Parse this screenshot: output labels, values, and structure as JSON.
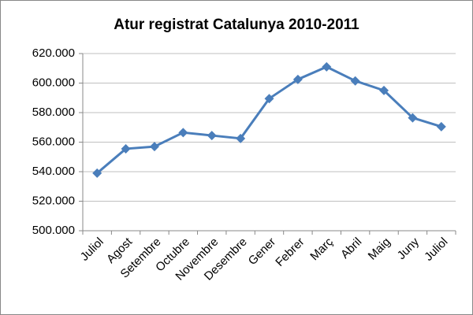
{
  "chart_data": {
    "type": "line",
    "title": "Atur registrat Catalunya 2010-2011",
    "categories": [
      "Juliol",
      "Agost",
      "Setembre",
      "Octubre",
      "Novembre",
      "Desembre",
      "Gener",
      "Febrer",
      "Març",
      "Abril",
      "Maig",
      "Juny",
      "Juliol"
    ],
    "series": [
      {
        "name": "Atur registrat",
        "color": "#4a7ebb",
        "values": [
          539000,
          555500,
          557000,
          566500,
          564500,
          562500,
          589500,
          602500,
          611000,
          601500,
          595000,
          576500,
          570500
        ]
      }
    ],
    "ylim": [
      500000,
      620000
    ],
    "yticks": [
      {
        "value": 500000,
        "label": "500.000"
      },
      {
        "value": 520000,
        "label": "520.000"
      },
      {
        "value": 540000,
        "label": "540.000"
      },
      {
        "value": 560000,
        "label": "560.000"
      },
      {
        "value": 580000,
        "label": "580.000"
      },
      {
        "value": 600000,
        "label": "600.000"
      },
      {
        "value": 620000,
        "label": "620.000"
      }
    ],
    "grid": true
  }
}
